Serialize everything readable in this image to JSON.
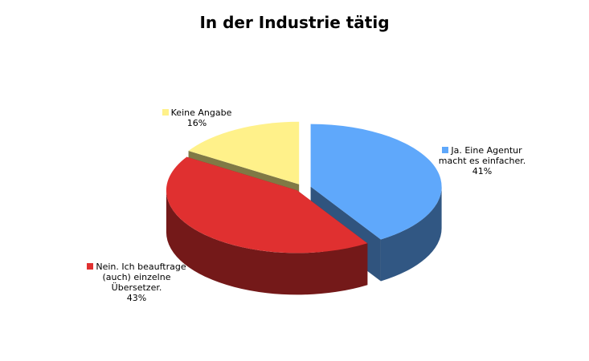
{
  "chart_data": {
    "type": "pie3d",
    "title": "In der Industrie tätig",
    "categories": [
      "Ja. Eine Agentur macht es einfacher.",
      "Nein. Ich beauftrage (auch) einzelne Übersetzer.",
      "Keine Angabe"
    ],
    "values": [
      41,
      43,
      16
    ],
    "value_labels": [
      "41%",
      "43%",
      "16%"
    ],
    "colors": [
      "#5fa8fb",
      "#e03030",
      "#fff18a"
    ]
  }
}
